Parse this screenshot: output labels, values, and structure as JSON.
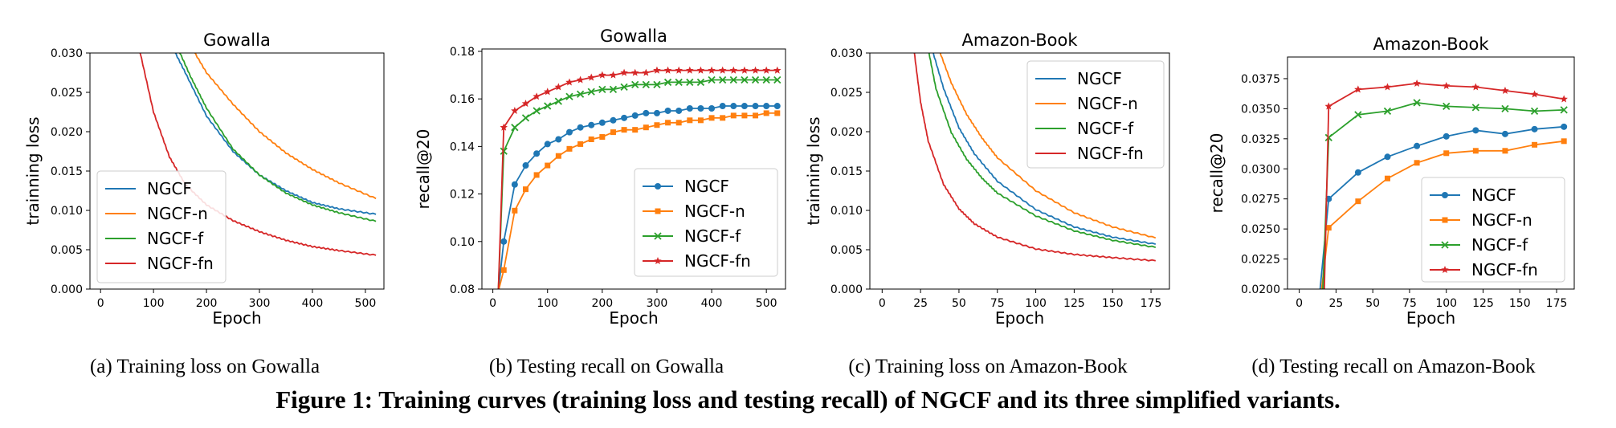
{
  "figure_caption": "Figure 1: Training curves (training loss and testing recall) of NGCF and its three simplified variants.",
  "legend_labels": [
    "NGCF",
    "NGCF-n",
    "NGCF-f",
    "NGCF-fn"
  ],
  "colors": {
    "NGCF": "#1f77b4",
    "NGCF-n": "#ff7f0e",
    "NGCF-f": "#2ca02c",
    "NGCF-fn": "#d62728"
  },
  "chart_data": [
    {
      "type": "line",
      "title": "Gowalla",
      "subcaption": "(a)  Training loss on Gowalla",
      "xlabel": "Epoch",
      "ylabel": "trainning loss",
      "xlim": [
        -20,
        535
      ],
      "ylim": [
        0,
        0.03
      ],
      "xticks": [
        0,
        100,
        200,
        300,
        400,
        500
      ],
      "xtick_labels": [
        "0",
        "100",
        "200",
        "300",
        "400",
        "500"
      ],
      "yticks": [
        0,
        0.005,
        0.01,
        0.015,
        0.02,
        0.025,
        0.03
      ],
      "ytick_labels": [
        "0.000",
        "0.005",
        "0.010",
        "0.015",
        "0.020",
        "0.025",
        "0.030"
      ],
      "legend_position": "lower-left",
      "grid": false,
      "markers": false,
      "series": [
        {
          "name": "NGCF",
          "x": [
            130,
            160,
            200,
            250,
            300,
            350,
            400,
            450,
            520
          ],
          "y": [
            0.0315,
            0.0275,
            0.022,
            0.0175,
            0.0145,
            0.0125,
            0.011,
            0.0102,
            0.0095
          ]
        },
        {
          "name": "NGCF-n",
          "x": [
            165,
            200,
            250,
            300,
            350,
            400,
            450,
            520
          ],
          "y": [
            0.0315,
            0.0275,
            0.0235,
            0.02,
            0.0173,
            0.0152,
            0.0135,
            0.0115
          ]
        },
        {
          "name": "NGCF-f",
          "x": [
            140,
            170,
            200,
            250,
            300,
            350,
            400,
            450,
            520
          ],
          "y": [
            0.0315,
            0.027,
            0.023,
            0.0178,
            0.0145,
            0.0122,
            0.0107,
            0.0097,
            0.0086
          ]
        },
        {
          "name": "NGCF-fn",
          "x": [
            70,
            100,
            130,
            160,
            200,
            250,
            300,
            350,
            400,
            450,
            520
          ],
          "y": [
            0.0315,
            0.0225,
            0.0168,
            0.0133,
            0.0107,
            0.0087,
            0.0073,
            0.0062,
            0.0054,
            0.0049,
            0.0043
          ]
        }
      ]
    },
    {
      "type": "line",
      "title": "Gowalla",
      "subcaption": "(b)  Testing recall on Gowalla",
      "xlabel": "Epoch",
      "ylabel": "recall@20",
      "xlim": [
        -20,
        535
      ],
      "ylim": [
        0.08,
        0.181
      ],
      "xticks": [
        0,
        100,
        200,
        300,
        400,
        500
      ],
      "xtick_labels": [
        "0",
        "100",
        "200",
        "300",
        "400",
        "500"
      ],
      "yticks": [
        0.08,
        0.1,
        0.12,
        0.14,
        0.16,
        0.18
      ],
      "ytick_labels": [
        "0.08",
        "0.10",
        "0.12",
        "0.14",
        "0.16",
        "0.18"
      ],
      "legend_position": "lower-right",
      "grid": false,
      "markers": true,
      "series": [
        {
          "name": "NGCF",
          "x": [
            10,
            20,
            40,
            60,
            80,
            100,
            120,
            140,
            160,
            180,
            200,
            220,
            240,
            260,
            280,
            300,
            320,
            340,
            360,
            380,
            400,
            420,
            440,
            460,
            480,
            500,
            520
          ],
          "y": [
            0.079,
            0.1,
            0.124,
            0.132,
            0.137,
            0.141,
            0.143,
            0.146,
            0.148,
            0.149,
            0.15,
            0.151,
            0.152,
            0.153,
            0.154,
            0.154,
            0.155,
            0.155,
            0.156,
            0.156,
            0.156,
            0.157,
            0.157,
            0.157,
            0.157,
            0.157,
            0.157
          ]
        },
        {
          "name": "NGCF-n",
          "x": [
            10,
            20,
            40,
            60,
            80,
            100,
            120,
            140,
            160,
            180,
            200,
            220,
            240,
            260,
            280,
            300,
            320,
            340,
            360,
            380,
            400,
            420,
            440,
            460,
            480,
            500,
            520
          ],
          "y": [
            0.079,
            0.088,
            0.113,
            0.122,
            0.128,
            0.132,
            0.136,
            0.139,
            0.141,
            0.143,
            0.144,
            0.146,
            0.147,
            0.147,
            0.148,
            0.149,
            0.15,
            0.15,
            0.151,
            0.151,
            0.152,
            0.152,
            0.153,
            0.153,
            0.153,
            0.154,
            0.154
          ]
        },
        {
          "name": "NGCF-f",
          "x": [
            10,
            20,
            40,
            60,
            80,
            100,
            120,
            140,
            160,
            180,
            200,
            220,
            240,
            260,
            280,
            300,
            320,
            340,
            360,
            380,
            400,
            420,
            440,
            460,
            480,
            500,
            520
          ],
          "y": [
            0.079,
            0.138,
            0.148,
            0.152,
            0.155,
            0.157,
            0.159,
            0.161,
            0.162,
            0.163,
            0.164,
            0.164,
            0.165,
            0.166,
            0.166,
            0.166,
            0.167,
            0.167,
            0.167,
            0.167,
            0.168,
            0.168,
            0.168,
            0.168,
            0.168,
            0.168,
            0.168
          ]
        },
        {
          "name": "NGCF-fn",
          "x": [
            10,
            20,
            40,
            60,
            80,
            100,
            120,
            140,
            160,
            180,
            200,
            220,
            240,
            260,
            280,
            300,
            320,
            340,
            360,
            380,
            400,
            420,
            440,
            460,
            480,
            500,
            520
          ],
          "y": [
            0.079,
            0.148,
            0.155,
            0.158,
            0.161,
            0.163,
            0.165,
            0.167,
            0.168,
            0.169,
            0.17,
            0.17,
            0.171,
            0.171,
            0.171,
            0.172,
            0.172,
            0.172,
            0.172,
            0.172,
            0.172,
            0.172,
            0.172,
            0.172,
            0.172,
            0.172,
            0.172
          ]
        }
      ]
    },
    {
      "type": "line",
      "title": "Amazon-Book",
      "subcaption": "(c)  Training loss on Amazon-Book",
      "xlabel": "Epoch",
      "ylabel": "trainning loss",
      "xlim": [
        -8,
        187
      ],
      "ylim": [
        0,
        0.03
      ],
      "xticks": [
        0,
        25,
        50,
        75,
        100,
        125,
        150,
        175
      ],
      "xtick_labels": [
        "0",
        "25",
        "50",
        "75",
        "100",
        "125",
        "150",
        "175"
      ],
      "yticks": [
        0,
        0.005,
        0.01,
        0.015,
        0.02,
        0.025,
        0.03
      ],
      "ytick_labels": [
        "0.000",
        "0.005",
        "0.010",
        "0.015",
        "0.020",
        "0.025",
        "0.030"
      ],
      "legend_position": "upper-right",
      "grid": false,
      "markers": false,
      "series": [
        {
          "name": "NGCF",
          "x": [
            31,
            40,
            50,
            60,
            75,
            100,
            125,
            150,
            178
          ],
          "y": [
            0.0315,
            0.0255,
            0.0205,
            0.0172,
            0.0137,
            0.0101,
            0.0079,
            0.0066,
            0.0057
          ]
        },
        {
          "name": "NGCF-n",
          "x": [
            35,
            45,
            55,
            65,
            75,
            100,
            125,
            150,
            178
          ],
          "y": [
            0.0315,
            0.0262,
            0.0222,
            0.0192,
            0.0167,
            0.0125,
            0.0097,
            0.0079,
            0.0065
          ]
        },
        {
          "name": "NGCF-f",
          "x": [
            29,
            35,
            45,
            55,
            65,
            75,
            100,
            125,
            150,
            178
          ],
          "y": [
            0.0315,
            0.0255,
            0.0199,
            0.0165,
            0.0141,
            0.0122,
            0.0093,
            0.0074,
            0.0062,
            0.0053
          ]
        },
        {
          "name": "NGCF-fn",
          "x": [
            20,
            25,
            30,
            40,
            50,
            60,
            75,
            100,
            125,
            150,
            178
          ],
          "y": [
            0.0315,
            0.0238,
            0.0188,
            0.0133,
            0.0102,
            0.0083,
            0.0066,
            0.0051,
            0.0044,
            0.004,
            0.0036
          ]
        }
      ]
    },
    {
      "type": "line",
      "title": "Amazon-Book",
      "subcaption": "(d)  Testing recall on Amazon-Book",
      "xlabel": "Epoch",
      "ylabel": "recall@20",
      "xlim": [
        -8,
        187
      ],
      "ylim": [
        0.02,
        0.0393
      ],
      "xticks": [
        0,
        25,
        50,
        75,
        100,
        125,
        150,
        175
      ],
      "xtick_labels": [
        "0",
        "25",
        "50",
        "75",
        "100",
        "125",
        "150",
        "175"
      ],
      "yticks": [
        0.02,
        0.0225,
        0.025,
        0.0275,
        0.03,
        0.0325,
        0.035,
        0.0375
      ],
      "ytick_labels": [
        "0.0200",
        "0.0225",
        "0.0250",
        "0.0275",
        "0.0300",
        "0.0325",
        "0.0350",
        "0.0375"
      ],
      "legend_position": "lower-right",
      "grid": false,
      "markers": true,
      "series": [
        {
          "name": "NGCF",
          "x": [
            14,
            20,
            40,
            60,
            80,
            100,
            120,
            140,
            160,
            180
          ],
          "y": [
            0.0198,
            0.0275,
            0.0297,
            0.031,
            0.0319,
            0.0327,
            0.0332,
            0.0329,
            0.0333,
            0.0335
          ]
        },
        {
          "name": "NGCF-n",
          "x": [
            15,
            20,
            40,
            60,
            80,
            100,
            120,
            140,
            160,
            180
          ],
          "y": [
            0.0198,
            0.0251,
            0.0273,
            0.0292,
            0.0305,
            0.0313,
            0.0315,
            0.0315,
            0.032,
            0.0323
          ]
        },
        {
          "name": "NGCF-f",
          "x": [
            16,
            20,
            40,
            60,
            80,
            100,
            120,
            140,
            160,
            180
          ],
          "y": [
            0.0198,
            0.0326,
            0.0345,
            0.0348,
            0.0355,
            0.0352,
            0.0351,
            0.035,
            0.0348,
            0.0349
          ]
        },
        {
          "name": "NGCF-fn",
          "x": [
            17,
            20,
            40,
            60,
            80,
            100,
            120,
            140,
            160,
            180
          ],
          "y": [
            0.0198,
            0.0352,
            0.0366,
            0.0368,
            0.0371,
            0.0369,
            0.0368,
            0.0365,
            0.0362,
            0.0358
          ]
        }
      ]
    }
  ]
}
